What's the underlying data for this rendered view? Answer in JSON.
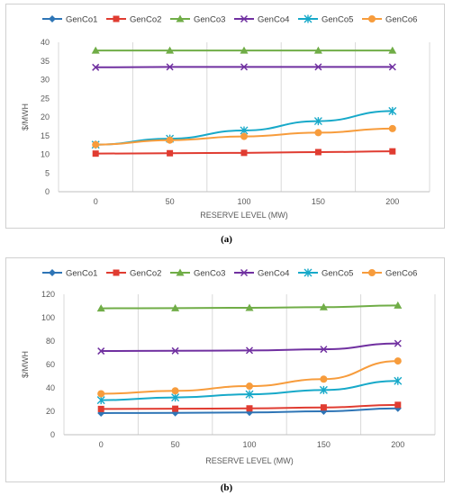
{
  "colors": {
    "GenCo1": "#2e75b6",
    "GenCo2": "#e03c31",
    "GenCo3": "#70ad47",
    "GenCo4": "#7030a0",
    "GenCo5": "#17a9c9",
    "GenCo6": "#f79c3c"
  },
  "captions": {
    "a": "(a)",
    "b": "(b)"
  },
  "chart_data": [
    {
      "type": "line",
      "xlabel": "RESERVE LEVEL (MW)",
      "ylabel": "$/MWH",
      "categories": [
        "0",
        "50",
        "100",
        "150",
        "200"
      ],
      "ylim": [
        0,
        40
      ],
      "yticks": [
        "0",
        "5",
        "10",
        "15",
        "20",
        "25",
        "30",
        "35",
        "40"
      ],
      "grid": "vertical",
      "legend": "top",
      "series": [
        {
          "name": "GenCo1",
          "marker": "diamond",
          "values": [
            null,
            null,
            null,
            null,
            null
          ]
        },
        {
          "name": "GenCo2",
          "marker": "square",
          "values": [
            10.2,
            10.3,
            10.4,
            10.6,
            10.8
          ]
        },
        {
          "name": "GenCo3",
          "marker": "triangle",
          "values": [
            37.8,
            37.8,
            37.8,
            37.8,
            37.8
          ]
        },
        {
          "name": "GenCo4",
          "marker": "x",
          "values": [
            33.3,
            33.4,
            33.4,
            33.4,
            33.4
          ]
        },
        {
          "name": "GenCo5",
          "marker": "star",
          "values": [
            12.6,
            14.2,
            16.4,
            18.9,
            21.6
          ]
        },
        {
          "name": "GenCo6",
          "marker": "circle",
          "values": [
            12.6,
            13.8,
            14.8,
            15.8,
            16.9
          ]
        }
      ]
    },
    {
      "type": "line",
      "xlabel": "RESERVE LEVEL (MW)",
      "ylabel": "$/MWH",
      "categories": [
        "0",
        "50",
        "100",
        "150",
        "200"
      ],
      "ylim": [
        0,
        120
      ],
      "yticks": [
        "0",
        "20",
        "40",
        "60",
        "80",
        "100",
        "120"
      ],
      "grid": "vertical",
      "legend": "top",
      "series": [
        {
          "name": "GenCo1",
          "marker": "diamond",
          "values": [
            18.5,
            18.7,
            19.0,
            20.0,
            22.5
          ]
        },
        {
          "name": "GenCo2",
          "marker": "square",
          "values": [
            22.0,
            22.2,
            22.5,
            23.3,
            25.5
          ]
        },
        {
          "name": "GenCo3",
          "marker": "triangle",
          "values": [
            108.0,
            108.2,
            108.5,
            109.0,
            110.5
          ]
        },
        {
          "name": "GenCo4",
          "marker": "x",
          "values": [
            71.5,
            71.7,
            72.0,
            73.0,
            78.0
          ]
        },
        {
          "name": "GenCo5",
          "marker": "star",
          "values": [
            29.5,
            31.8,
            34.5,
            38.2,
            46.0
          ]
        },
        {
          "name": "GenCo6",
          "marker": "circle",
          "values": [
            35.0,
            37.5,
            41.5,
            47.5,
            63.0
          ]
        }
      ]
    }
  ]
}
